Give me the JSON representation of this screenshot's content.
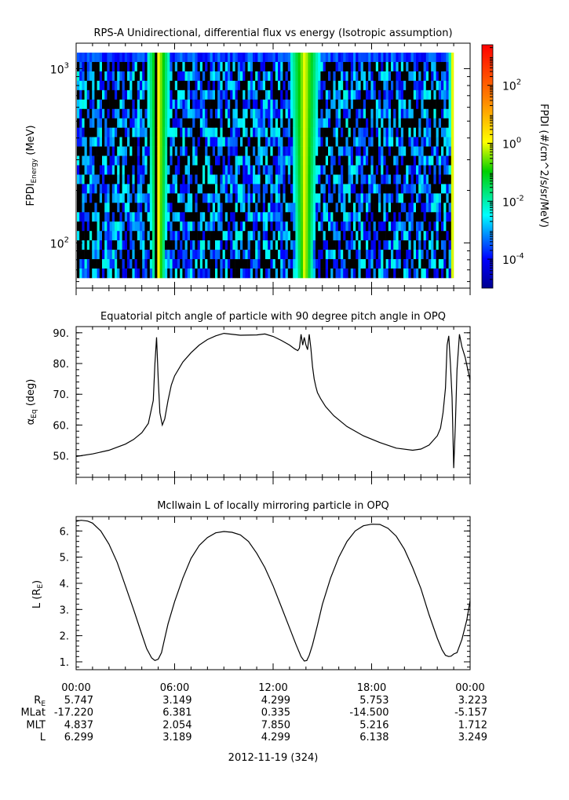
{
  "chart_data": [
    {
      "type": "heatmap",
      "title": "RPS-A Unidirectional, differential flux vs energy (Isotropic assumption)",
      "ylabel_main": "FPDI",
      "ylabel_sub": "Energy",
      "ylabel_unit": "(MeV)",
      "y_scale": "log",
      "ylim": [
        55,
        1400
      ],
      "y_ticks": [
        {
          "value": 100,
          "base": "10",
          "exp": "2"
        },
        {
          "value": 1000,
          "base": "10",
          "exp": "3"
        }
      ],
      "colorbar": {
        "label": "FPDI (#/cm^2/s/sr/MeV)",
        "scale": "log",
        "range_exp": [
          -5,
          3.4
        ],
        "colormap": "rainbow",
        "ticks": [
          {
            "exp": -4,
            "base": "10",
            "exp_label": "-4"
          },
          {
            "exp": -2,
            "base": "10",
            "exp_label": "-2"
          },
          {
            "exp": 0,
            "base": "10",
            "exp_label": "0"
          },
          {
            "exp": 2,
            "base": "10",
            "exp_label": "2"
          }
        ]
      },
      "data_x_range_hours": [
        0,
        22.9
      ],
      "enhancements": [
        {
          "center_hours": 4.95,
          "half_width_hours": 0.75
        },
        {
          "center_hours": 13.85,
          "half_width_hours": 0.95
        },
        {
          "center_hours": 22.85,
          "half_width_hours": 0.2
        }
      ],
      "black_gap_hours": [
        4.75,
        13.75
      ]
    },
    {
      "type": "line",
      "title": "Equatorial pitch angle of particle with 90 degree pitch angle in OPQ",
      "ylabel": "α",
      "ylabel_sub": "Eq",
      "ylabel_unit": "(deg)",
      "ylim": [
        43,
        92
      ],
      "y_ticks": [
        50,
        60,
        70,
        80,
        90
      ],
      "series": [
        {
          "x": [
            0,
            1,
            2,
            3,
            3.5,
            4,
            4.4,
            4.7,
            4.8,
            4.9,
            5.0,
            5.1,
            5.25,
            5.4,
            5.6,
            5.8,
            6,
            6.5,
            7,
            7.5,
            8,
            8.5,
            9,
            10,
            11,
            11.5,
            12,
            12.5,
            13,
            13.3,
            13.5,
            13.6,
            13.7,
            13.8,
            13.9,
            14.0,
            14.1,
            14.2,
            14.3,
            14.4,
            14.5,
            14.6,
            14.7,
            14.9,
            15.2,
            15.7,
            16.5,
            17.5,
            18.5,
            19.5,
            20.5,
            21,
            21.5,
            22,
            22.2,
            22.35,
            22.5,
            22.6,
            22.7,
            22.8,
            22.9,
            23.0,
            23.1,
            23.2,
            23.35,
            23.5,
            23.7,
            24
          ],
          "y": [
            49.8,
            50.6,
            51.8,
            53.8,
            55.3,
            57.5,
            60.5,
            68,
            80,
            88.5,
            75,
            64,
            60,
            62,
            68,
            73,
            76,
            80.5,
            83.5,
            86,
            87.8,
            89,
            89.8,
            89.2,
            89.3,
            89.6,
            88.8,
            87.5,
            86,
            84.8,
            84.2,
            85,
            89.5,
            86,
            88.5,
            86,
            84.5,
            89.5,
            85,
            79,
            75,
            72.5,
            70.5,
            68.5,
            66,
            63,
            59.5,
            56.5,
            54.3,
            52.5,
            51.8,
            52.2,
            53.5,
            56.5,
            59,
            64,
            72,
            86,
            89,
            80,
            69,
            46,
            60,
            78,
            89.5,
            85.5,
            82,
            74.5
          ]
        }
      ]
    },
    {
      "type": "line",
      "title": "McIlwain L of locally mirroring particle in OPQ",
      "ylabel": "L (R",
      "ylabel_sub": "E",
      "ylabel_close": ")",
      "ylim": [
        0.7,
        6.55
      ],
      "y_ticks": [
        1,
        2,
        3,
        4,
        5,
        6
      ],
      "series": [
        {
          "x": [
            0,
            0.3,
            0.7,
            1,
            1.5,
            2,
            2.5,
            3,
            3.5,
            4,
            4.3,
            4.6,
            4.8,
            5.0,
            5.2,
            5.4,
            5.6,
            6,
            6.5,
            7,
            7.5,
            8,
            8.5,
            9,
            9.5,
            10,
            10.5,
            11,
            11.5,
            12,
            12.5,
            13,
            13.4,
            13.7,
            13.9,
            14.05,
            14.2,
            14.4,
            14.7,
            15,
            15.5,
            16,
            16.5,
            17,
            17.5,
            18,
            18.5,
            19,
            19.5,
            20,
            20.5,
            21,
            21.5,
            22,
            22.3,
            22.5,
            22.7,
            22.85,
            23.0,
            23.2,
            23.5,
            23.8,
            24
          ],
          "y": [
            6.37,
            6.41,
            6.38,
            6.3,
            6.0,
            5.5,
            4.8,
            3.9,
            3.0,
            2.05,
            1.5,
            1.15,
            1.05,
            1.1,
            1.35,
            1.9,
            2.45,
            3.3,
            4.2,
            4.95,
            5.45,
            5.75,
            5.93,
            5.98,
            5.95,
            5.85,
            5.6,
            5.15,
            4.6,
            3.9,
            3.1,
            2.3,
            1.65,
            1.2,
            1.03,
            1.05,
            1.25,
            1.65,
            2.4,
            3.2,
            4.2,
            5.0,
            5.6,
            6.0,
            6.2,
            6.26,
            6.25,
            6.1,
            5.8,
            5.3,
            4.6,
            3.8,
            2.8,
            1.9,
            1.45,
            1.25,
            1.2,
            1.22,
            1.3,
            1.35,
            1.85,
            2.6,
            3.35
          ]
        }
      ]
    }
  ],
  "x_axis": {
    "ticks": [
      "00:00",
      "06:00",
      "12:00",
      "18:00",
      "00:00"
    ],
    "tick_hours": [
      0,
      6,
      12,
      18,
      24
    ],
    "minor_step_hours": 1,
    "date_label": "2012-11-19 (324)"
  },
  "ephemeris": {
    "rows": [
      {
        "label": "R",
        "label_sub": "E",
        "values": [
          "5.747",
          "3.149",
          "4.299",
          "5.753",
          "3.223"
        ]
      },
      {
        "label": "MLat",
        "label_sub": "",
        "values": [
          "-17.220",
          "6.381",
          "0.335",
          "-14.500",
          "-5.157"
        ]
      },
      {
        "label": "MLT",
        "label_sub": "",
        "values": [
          "4.837",
          "2.054",
          "7.850",
          "5.216",
          "1.712"
        ]
      },
      {
        "label": "L",
        "label_sub": "",
        "values": [
          "6.299",
          "3.189",
          "4.299",
          "6.138",
          "3.249"
        ]
      }
    ]
  }
}
